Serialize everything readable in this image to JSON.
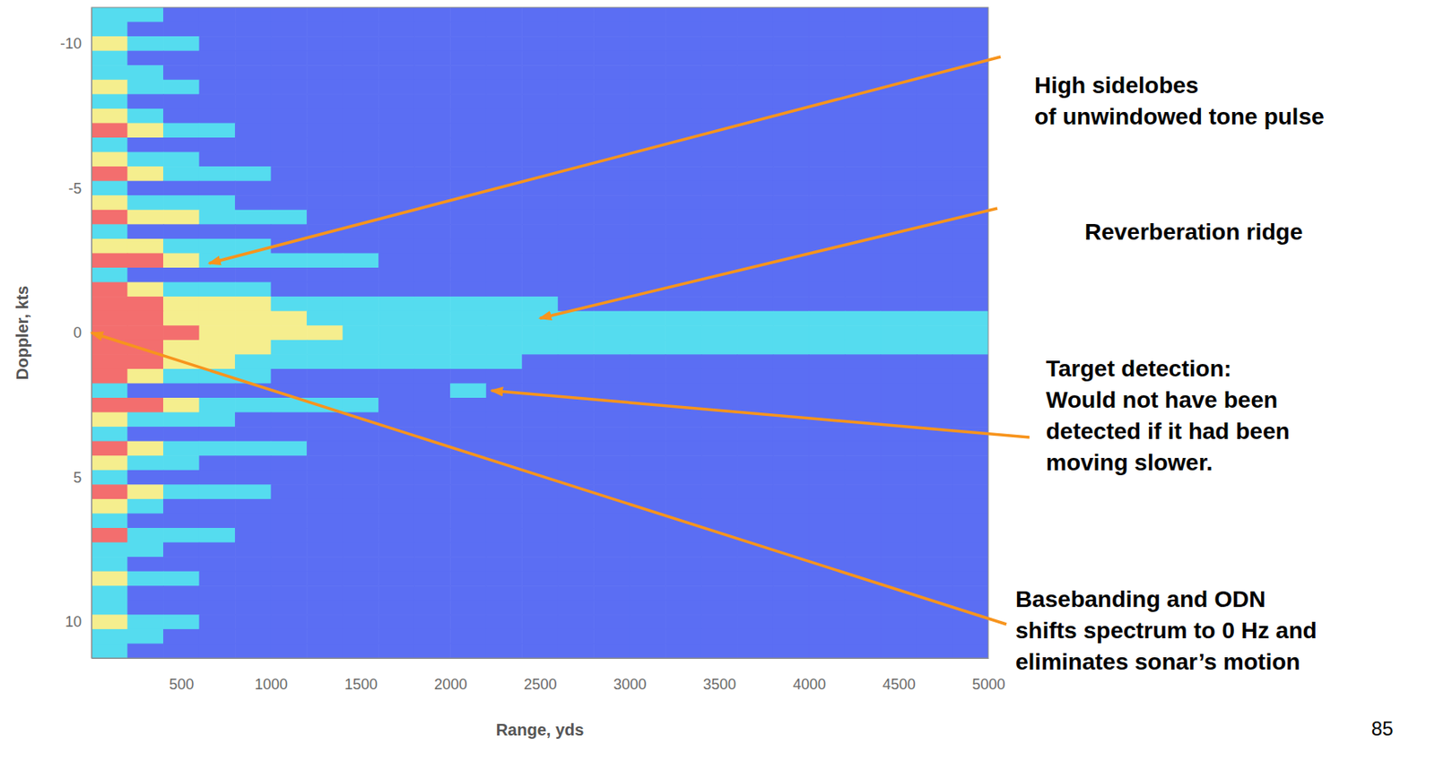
{
  "chart_data": {
    "type": "heatmap",
    "x_label": "Range, yds",
    "y_label": "Doppler, kts",
    "xlim": [
      0,
      5000
    ],
    "xticks": [
      500,
      1000,
      1500,
      2000,
      2500,
      3000,
      3500,
      4000,
      4500,
      5000
    ],
    "ylim": [
      -11.25,
      11.25
    ],
    "yticks": [
      -10,
      -5,
      0,
      5,
      10
    ],
    "x": [
      100,
      300,
      500,
      700,
      900,
      1100,
      1300,
      1500,
      1700,
      1900,
      2100,
      2300,
      2500,
      2700,
      2900,
      3100,
      3300,
      3500,
      3700,
      3900,
      4100,
      4300,
      4500,
      4700,
      4900
    ],
    "y": [
      -11,
      -10.5,
      -10,
      -9.5,
      -9,
      -8.5,
      -8,
      -7.5,
      -7,
      -6.5,
      -6,
      -5.5,
      -5,
      -4.5,
      -4,
      -3.5,
      -3,
      -2.5,
      -2,
      -1.5,
      -1,
      -0.5,
      0,
      0.5,
      1,
      1.5,
      2,
      2.5,
      3,
      3.5,
      4,
      4.5,
      5,
      5.5,
      6,
      6.5,
      7,
      7.5,
      8,
      8.5,
      9,
      9.5,
      10,
      10.5,
      11
    ],
    "color_levels": [
      0,
      1,
      2,
      3
    ],
    "colors": [
      "#5b6ef3",
      "#55dcef",
      "#f5ee8e",
      "#f36e6e"
    ],
    "cells": [
      [
        1,
        1,
        0,
        0,
        0,
        0,
        0,
        0,
        0,
        0,
        0,
        0,
        0,
        0,
        0,
        0,
        0,
        0,
        0,
        0,
        0,
        0,
        0,
        0,
        0
      ],
      [
        1,
        0,
        0,
        0,
        0,
        0,
        0,
        0,
        0,
        0,
        0,
        0,
        0,
        0,
        0,
        0,
        0,
        0,
        0,
        0,
        0,
        0,
        0,
        0,
        0
      ],
      [
        2,
        1,
        1,
        0,
        0,
        0,
        0,
        0,
        0,
        0,
        0,
        0,
        0,
        0,
        0,
        0,
        0,
        0,
        0,
        0,
        0,
        0,
        0,
        0,
        0
      ],
      [
        1,
        0,
        0,
        0,
        0,
        0,
        0,
        0,
        0,
        0,
        0,
        0,
        0,
        0,
        0,
        0,
        0,
        0,
        0,
        0,
        0,
        0,
        0,
        0,
        0
      ],
      [
        1,
        1,
        0,
        0,
        0,
        0,
        0,
        0,
        0,
        0,
        0,
        0,
        0,
        0,
        0,
        0,
        0,
        0,
        0,
        0,
        0,
        0,
        0,
        0,
        0
      ],
      [
        2,
        1,
        1,
        0,
        0,
        0,
        0,
        0,
        0,
        0,
        0,
        0,
        0,
        0,
        0,
        0,
        0,
        0,
        0,
        0,
        0,
        0,
        0,
        0,
        0
      ],
      [
        1,
        0,
        0,
        0,
        0,
        0,
        0,
        0,
        0,
        0,
        0,
        0,
        0,
        0,
        0,
        0,
        0,
        0,
        0,
        0,
        0,
        0,
        0,
        0,
        0
      ],
      [
        2,
        1,
        0,
        0,
        0,
        0,
        0,
        0,
        0,
        0,
        0,
        0,
        0,
        0,
        0,
        0,
        0,
        0,
        0,
        0,
        0,
        0,
        0,
        0,
        0
      ],
      [
        3,
        2,
        1,
        1,
        0,
        0,
        0,
        0,
        0,
        0,
        0,
        0,
        0,
        0,
        0,
        0,
        0,
        0,
        0,
        0,
        0,
        0,
        0,
        0,
        0
      ],
      [
        1,
        0,
        0,
        0,
        0,
        0,
        0,
        0,
        0,
        0,
        0,
        0,
        0,
        0,
        0,
        0,
        0,
        0,
        0,
        0,
        0,
        0,
        0,
        0,
        0
      ],
      [
        2,
        1,
        1,
        0,
        0,
        0,
        0,
        0,
        0,
        0,
        0,
        0,
        0,
        0,
        0,
        0,
        0,
        0,
        0,
        0,
        0,
        0,
        0,
        0,
        0
      ],
      [
        3,
        2,
        1,
        1,
        1,
        0,
        0,
        0,
        0,
        0,
        0,
        0,
        0,
        0,
        0,
        0,
        0,
        0,
        0,
        0,
        0,
        0,
        0,
        0,
        0
      ],
      [
        1,
        0,
        0,
        0,
        0,
        0,
        0,
        0,
        0,
        0,
        0,
        0,
        0,
        0,
        0,
        0,
        0,
        0,
        0,
        0,
        0,
        0,
        0,
        0,
        0
      ],
      [
        2,
        1,
        1,
        1,
        0,
        0,
        0,
        0,
        0,
        0,
        0,
        0,
        0,
        0,
        0,
        0,
        0,
        0,
        0,
        0,
        0,
        0,
        0,
        0,
        0
      ],
      [
        3,
        2,
        2,
        1,
        1,
        1,
        0,
        0,
        0,
        0,
        0,
        0,
        0,
        0,
        0,
        0,
        0,
        0,
        0,
        0,
        0,
        0,
        0,
        0,
        0
      ],
      [
        1,
        0,
        0,
        0,
        0,
        0,
        0,
        0,
        0,
        0,
        0,
        0,
        0,
        0,
        0,
        0,
        0,
        0,
        0,
        0,
        0,
        0,
        0,
        0,
        0
      ],
      [
        2,
        2,
        1,
        1,
        1,
        0,
        0,
        0,
        0,
        0,
        0,
        0,
        0,
        0,
        0,
        0,
        0,
        0,
        0,
        0,
        0,
        0,
        0,
        0,
        0
      ],
      [
        3,
        3,
        2,
        1,
        1,
        1,
        1,
        1,
        0,
        0,
        0,
        0,
        0,
        0,
        0,
        0,
        0,
        0,
        0,
        0,
        0,
        0,
        0,
        0,
        0
      ],
      [
        1,
        0,
        0,
        0,
        0,
        0,
        0,
        0,
        0,
        0,
        0,
        0,
        0,
        0,
        0,
        0,
        0,
        0,
        0,
        0,
        0,
        0,
        0,
        0,
        0
      ],
      [
        3,
        2,
        1,
        1,
        1,
        0,
        0,
        0,
        0,
        0,
        0,
        0,
        0,
        0,
        0,
        0,
        0,
        0,
        0,
        0,
        0,
        0,
        0,
        0,
        0
      ],
      [
        3,
        3,
        2,
        2,
        2,
        1,
        1,
        1,
        1,
        1,
        1,
        1,
        1,
        0,
        0,
        0,
        0,
        0,
        0,
        0,
        0,
        0,
        0,
        0,
        0
      ],
      [
        3,
        3,
        2,
        2,
        2,
        2,
        1,
        1,
        1,
        1,
        1,
        1,
        1,
        1,
        1,
        1,
        1,
        1,
        1,
        1,
        1,
        1,
        1,
        1,
        1
      ],
      [
        3,
        3,
        3,
        2,
        2,
        2,
        2,
        1,
        1,
        1,
        1,
        1,
        1,
        1,
        1,
        1,
        1,
        1,
        1,
        1,
        1,
        1,
        1,
        1,
        1
      ],
      [
        3,
        3,
        2,
        2,
        2,
        1,
        1,
        1,
        1,
        1,
        1,
        1,
        1,
        1,
        1,
        1,
        1,
        1,
        1,
        1,
        1,
        1,
        1,
        1,
        1
      ],
      [
        3,
        3,
        2,
        2,
        1,
        1,
        1,
        1,
        1,
        1,
        1,
        1,
        0,
        0,
        0,
        0,
        0,
        0,
        0,
        0,
        0,
        0,
        0,
        0,
        0
      ],
      [
        3,
        2,
        1,
        1,
        1,
        0,
        0,
        0,
        0,
        0,
        0,
        0,
        0,
        0,
        0,
        0,
        0,
        0,
        0,
        0,
        0,
        0,
        0,
        0,
        0
      ],
      [
        1,
        0,
        0,
        0,
        0,
        0,
        0,
        0,
        0,
        0,
        1,
        0,
        0,
        0,
        0,
        0,
        0,
        0,
        0,
        0,
        0,
        0,
        0,
        0,
        0
      ],
      [
        3,
        3,
        2,
        1,
        1,
        1,
        1,
        1,
        0,
        0,
        0,
        0,
        0,
        0,
        0,
        0,
        0,
        0,
        0,
        0,
        0,
        0,
        0,
        0,
        0
      ],
      [
        2,
        1,
        1,
        1,
        0,
        0,
        0,
        0,
        0,
        0,
        0,
        0,
        0,
        0,
        0,
        0,
        0,
        0,
        0,
        0,
        0,
        0,
        0,
        0,
        0
      ],
      [
        1,
        0,
        0,
        0,
        0,
        0,
        0,
        0,
        0,
        0,
        0,
        0,
        0,
        0,
        0,
        0,
        0,
        0,
        0,
        0,
        0,
        0,
        0,
        0,
        0
      ],
      [
        3,
        2,
        1,
        1,
        1,
        1,
        0,
        0,
        0,
        0,
        0,
        0,
        0,
        0,
        0,
        0,
        0,
        0,
        0,
        0,
        0,
        0,
        0,
        0,
        0
      ],
      [
        2,
        1,
        1,
        0,
        0,
        0,
        0,
        0,
        0,
        0,
        0,
        0,
        0,
        0,
        0,
        0,
        0,
        0,
        0,
        0,
        0,
        0,
        0,
        0,
        0
      ],
      [
        1,
        0,
        0,
        0,
        0,
        0,
        0,
        0,
        0,
        0,
        0,
        0,
        0,
        0,
        0,
        0,
        0,
        0,
        0,
        0,
        0,
        0,
        0,
        0,
        0
      ],
      [
        3,
        2,
        1,
        1,
        1,
        0,
        0,
        0,
        0,
        0,
        0,
        0,
        0,
        0,
        0,
        0,
        0,
        0,
        0,
        0,
        0,
        0,
        0,
        0,
        0
      ],
      [
        2,
        1,
        0,
        0,
        0,
        0,
        0,
        0,
        0,
        0,
        0,
        0,
        0,
        0,
        0,
        0,
        0,
        0,
        0,
        0,
        0,
        0,
        0,
        0,
        0
      ],
      [
        1,
        0,
        0,
        0,
        0,
        0,
        0,
        0,
        0,
        0,
        0,
        0,
        0,
        0,
        0,
        0,
        0,
        0,
        0,
        0,
        0,
        0,
        0,
        0,
        0
      ],
      [
        3,
        1,
        1,
        1,
        0,
        0,
        0,
        0,
        0,
        0,
        0,
        0,
        0,
        0,
        0,
        0,
        0,
        0,
        0,
        0,
        0,
        0,
        0,
        0,
        0
      ],
      [
        1,
        1,
        0,
        0,
        0,
        0,
        0,
        0,
        0,
        0,
        0,
        0,
        0,
        0,
        0,
        0,
        0,
        0,
        0,
        0,
        0,
        0,
        0,
        0,
        0
      ],
      [
        1,
        0,
        0,
        0,
        0,
        0,
        0,
        0,
        0,
        0,
        0,
        0,
        0,
        0,
        0,
        0,
        0,
        0,
        0,
        0,
        0,
        0,
        0,
        0,
        0
      ],
      [
        2,
        1,
        1,
        0,
        0,
        0,
        0,
        0,
        0,
        0,
        0,
        0,
        0,
        0,
        0,
        0,
        0,
        0,
        0,
        0,
        0,
        0,
        0,
        0,
        0
      ],
      [
        1,
        0,
        0,
        0,
        0,
        0,
        0,
        0,
        0,
        0,
        0,
        0,
        0,
        0,
        0,
        0,
        0,
        0,
        0,
        0,
        0,
        0,
        0,
        0,
        0
      ],
      [
        1,
        0,
        0,
        0,
        0,
        0,
        0,
        0,
        0,
        0,
        0,
        0,
        0,
        0,
        0,
        0,
        0,
        0,
        0,
        0,
        0,
        0,
        0,
        0,
        0
      ],
      [
        2,
        1,
        1,
        0,
        0,
        0,
        0,
        0,
        0,
        0,
        0,
        0,
        0,
        0,
        0,
        0,
        0,
        0,
        0,
        0,
        0,
        0,
        0,
        0,
        0
      ],
      [
        1,
        1,
        0,
        0,
        0,
        0,
        0,
        0,
        0,
        0,
        0,
        0,
        0,
        0,
        0,
        0,
        0,
        0,
        0,
        0,
        0,
        0,
        0,
        0,
        0
      ],
      [
        1,
        0,
        0,
        0,
        0,
        0,
        0,
        0,
        0,
        0,
        0,
        0,
        0,
        0,
        0,
        0,
        0,
        0,
        0,
        0,
        0,
        0,
        0,
        0,
        0
      ]
    ],
    "annotations": [
      {
        "lines": [
          "High sidelobes",
          "of unwindowed tone pulse"
        ],
        "x": 656,
        "y": -2.4
      },
      {
        "lines": [
          "Reverberation ridge"
        ],
        "x": 2500,
        "y": -0.5
      },
      {
        "lines": [
          "Target detection:",
          "Would not have been",
          "detected if it had been",
          "moving slower."
        ],
        "x": 2230,
        "y": 2
      },
      {
        "lines": [
          "Basebanding and ODN",
          "shifts spectrum to 0 Hz and",
          "eliminates sonar’s motion"
        ],
        "x": 0,
        "y": 0
      }
    ]
  },
  "page_number": 85
}
